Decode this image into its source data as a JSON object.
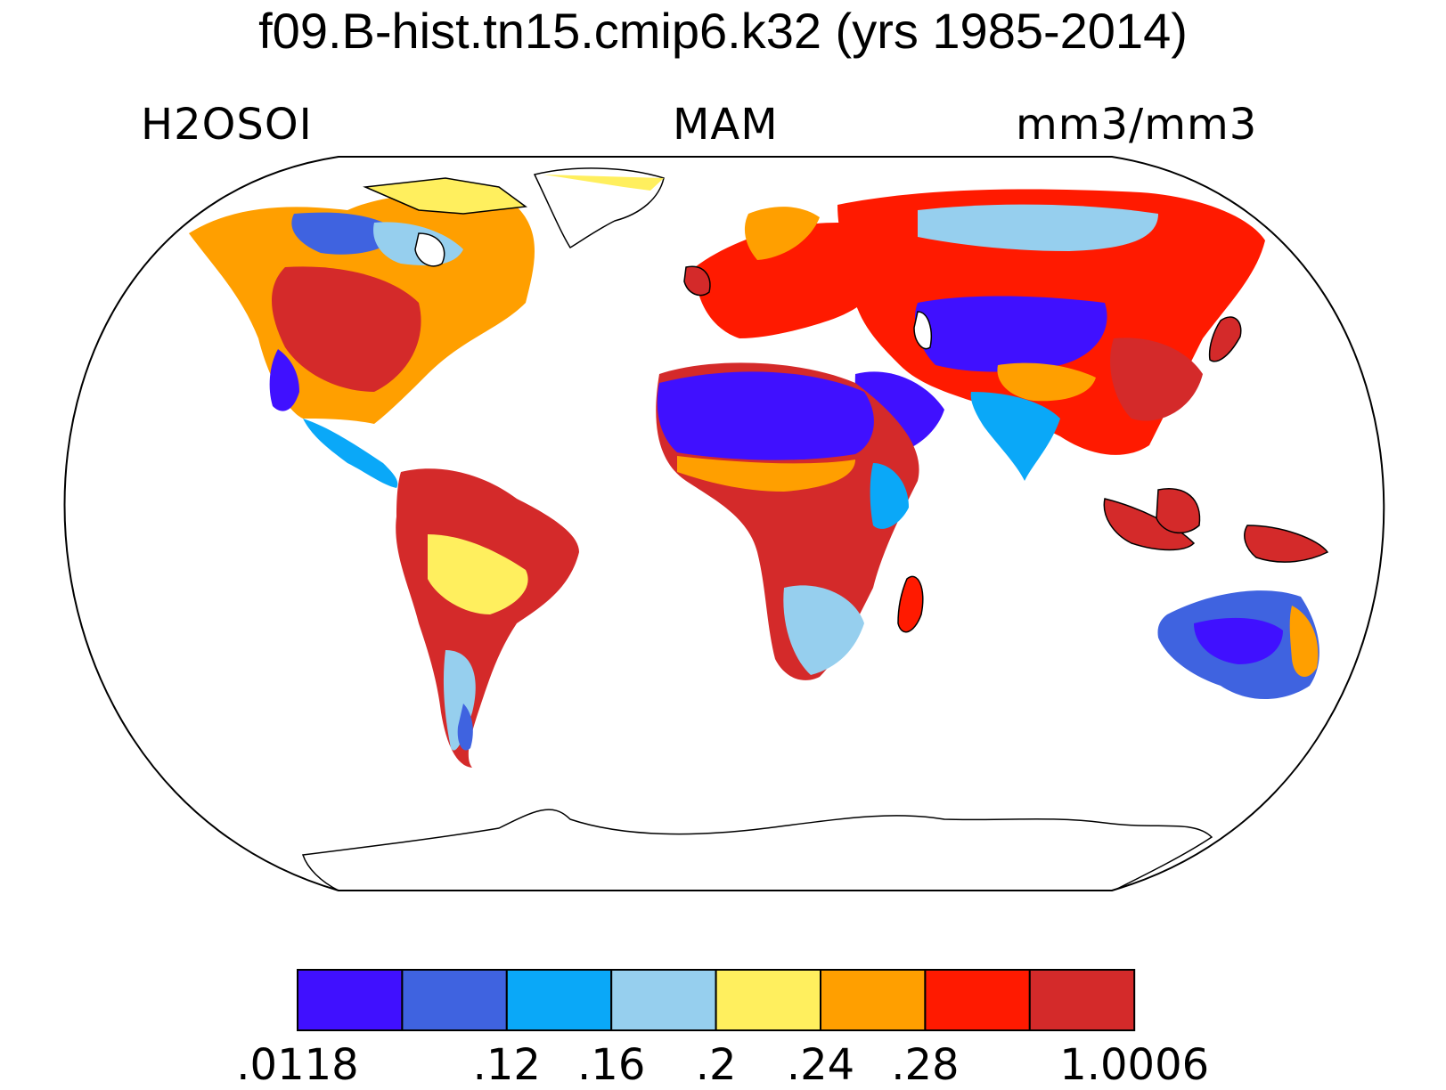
{
  "title": "f09.B-hist.tn15.cmip6.k32 (yrs 1985-2014)",
  "left_string": "H2OSOI",
  "center_string": "MAM",
  "right_string": "mm3/mm3",
  "colorbar": {
    "colors": [
      "#4010FF",
      "#3F63E0",
      "#0AA8F8",
      "#96CFEE",
      "#FFEF5E",
      "#FF9F00",
      "#FF1A00",
      "#D42A2A"
    ],
    "labels": [
      ".0118",
      ".12",
      ".16",
      ".2",
      ".24",
      ".28",
      "1.0006"
    ],
    "label_boundaries": [
      0,
      2,
      3,
      4,
      5,
      6,
      8
    ]
  }
}
